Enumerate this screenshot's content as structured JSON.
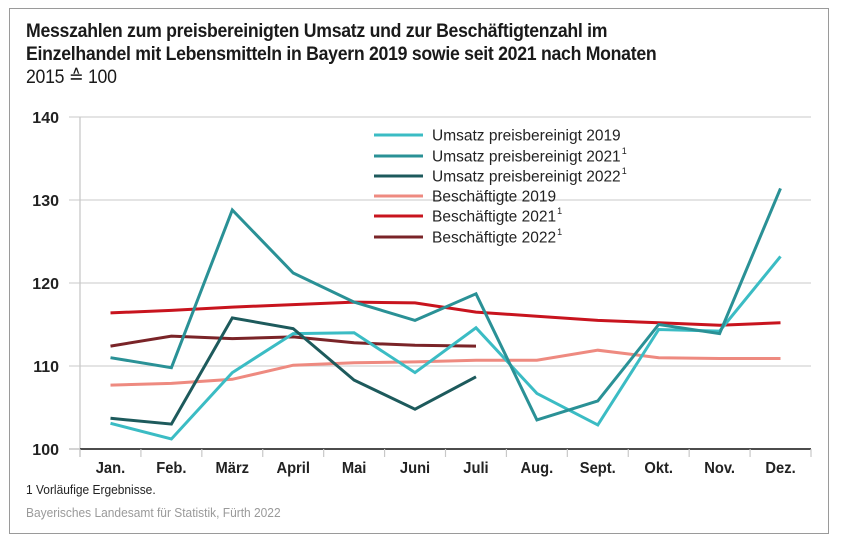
{
  "chart_data": {
    "type": "line",
    "title_lines": [
      "Messzahlen zum preisbereinigten Umsatz und zur Beschäftigtenzahl im",
      "Einzelhandel mit Lebensmitteln in Bayern 2019 sowie seit 2021 nach Monaten"
    ],
    "subtitle": "2015 ≙ 100",
    "xlabel": "",
    "ylabel": "",
    "ylim": [
      100,
      140
    ],
    "yticks": [
      100,
      110,
      120,
      130,
      140
    ],
    "grid": true,
    "legend_position": "top-center",
    "categories": [
      "Jan.",
      "Feb.",
      "März",
      "April",
      "Mai",
      "Juni",
      "Juli",
      "Aug.",
      "Sept.",
      "Okt.",
      "Nov.",
      "Dez."
    ],
    "series": [
      {
        "name": "Umsatz preisbereinigt 2019",
        "footnote": "",
        "color": "#3bbcc4",
        "values": [
          103.1,
          101.2,
          109.2,
          113.9,
          114.0,
          109.2,
          114.6,
          106.7,
          102.9,
          114.4,
          114.2,
          123.2
        ]
      },
      {
        "name": "Umsatz preisbereinigt 2021",
        "footnote": "1",
        "color": "#2a9196",
        "values": [
          111.0,
          109.8,
          128.8,
          121.2,
          117.7,
          115.5,
          118.7,
          103.5,
          105.8,
          115.0,
          113.9,
          131.4
        ]
      },
      {
        "name": "Umsatz preisbereinigt 2022",
        "footnote": "1",
        "color": "#1d5a5c",
        "values": [
          103.7,
          103.0,
          115.8,
          114.5,
          108.3,
          104.8,
          108.7,
          null,
          null,
          null,
          null,
          null
        ]
      },
      {
        "name": "Beschäftigte 2019",
        "footnote": "",
        "color": "#ee8a80",
        "values": [
          107.7,
          107.9,
          108.4,
          110.1,
          110.4,
          110.5,
          110.7,
          110.7,
          111.9,
          111.0,
          110.9,
          110.9
        ]
      },
      {
        "name": "Beschäftigte 2021",
        "footnote": "1",
        "color": "#c8141e",
        "values": [
          116.4,
          116.7,
          117.1,
          117.4,
          117.7,
          117.6,
          116.5,
          116.0,
          115.5,
          115.2,
          114.9,
          115.2
        ]
      },
      {
        "name": "Beschäftigte 2022",
        "footnote": "1",
        "color": "#7a2428",
        "values": [
          112.4,
          113.6,
          113.3,
          113.5,
          112.8,
          112.5,
          112.4,
          null,
          null,
          null,
          null,
          null
        ]
      }
    ]
  },
  "footnote": "1 Vorläufige Ergebnisse.",
  "source": "Bayerisches Landesamt für Statistik, Fürth 2022"
}
